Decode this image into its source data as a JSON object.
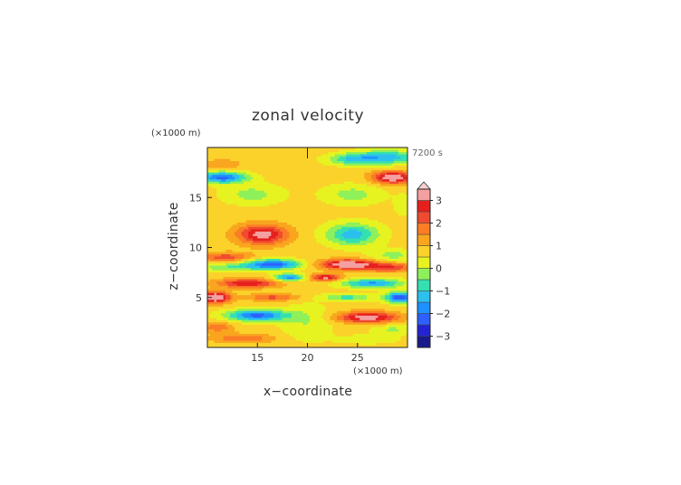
{
  "chart_data": {
    "type": "heatmap",
    "title": "zonal velocity",
    "xlabel": "x−coordinate",
    "ylabel": "z−coordinate",
    "x_unit": "(×1000 m)",
    "y_unit": "(×1000 m)",
    "time_label": "7200 s",
    "xlim": [
      10,
      30
    ],
    "ylim": [
      0,
      20
    ],
    "x_ticks": [
      "15",
      "20",
      "25"
    ],
    "x_tick_values": [
      15,
      20,
      25
    ],
    "y_ticks": [
      "5",
      "10",
      "15"
    ],
    "y_tick_values": [
      5,
      10,
      15
    ],
    "colorbar": {
      "range": [
        -3.5,
        3.5
      ],
      "ticks": [
        "3",
        "2",
        "1",
        "0",
        "−1",
        "−2",
        "−3"
      ],
      "tick_values": [
        3,
        2,
        1,
        0,
        -1,
        -2,
        -3
      ],
      "extend": "max",
      "levels": [
        {
          "min": -3.5,
          "max": -3.0,
          "color": "#1a1a8c"
        },
        {
          "min": -3.0,
          "max": -2.5,
          "color": "#2323d4"
        },
        {
          "min": -2.5,
          "max": -2.0,
          "color": "#2e5fff"
        },
        {
          "min": -2.0,
          "max": -1.5,
          "color": "#1f90ff"
        },
        {
          "min": -1.5,
          "max": -1.0,
          "color": "#2bc0ee"
        },
        {
          "min": -1.0,
          "max": -0.5,
          "color": "#35e0b0"
        },
        {
          "min": -0.5,
          "max": 0.0,
          "color": "#8ef05a"
        },
        {
          "min": 0.0,
          "max": 0.5,
          "color": "#e7f320"
        },
        {
          "min": 0.5,
          "max": 1.0,
          "color": "#fad22a"
        },
        {
          "min": 1.0,
          "max": 1.5,
          "color": "#f9a51e"
        },
        {
          "min": 1.5,
          "max": 2.0,
          "color": "#fb7d26"
        },
        {
          "min": 2.0,
          "max": 2.5,
          "color": "#f04a30"
        },
        {
          "min": 2.5,
          "max": 3.0,
          "color": "#e6201c"
        },
        {
          "min": 3.0,
          "max": 3.5,
          "color": "#f4a0a0"
        }
      ]
    },
    "background_value": 0.7,
    "features": [
      {
        "x": 11.5,
        "z": 18.3,
        "sx": 1.8,
        "sz": 0.5,
        "v": 0.8
      },
      {
        "x": 11.5,
        "z": 17.0,
        "sx": 2.4,
        "sz": 0.55,
        "v": -2.9
      },
      {
        "x": 28.0,
        "z": 19.0,
        "sx": 3.5,
        "sz": 0.7,
        "v": -1.9
      },
      {
        "x": 24.5,
        "z": 18.8,
        "sx": 2.5,
        "sz": 0.55,
        "v": -1.4
      },
      {
        "x": 28.5,
        "z": 17.0,
        "sx": 2.0,
        "sz": 0.6,
        "v": 3.0
      },
      {
        "x": 14.5,
        "z": 15.3,
        "sx": 3.0,
        "sz": 1.0,
        "v": -0.9
      },
      {
        "x": 24.5,
        "z": 15.3,
        "sx": 3.0,
        "sz": 1.0,
        "v": -0.9
      },
      {
        "x": 29.6,
        "z": 14.2,
        "sx": 0.9,
        "sz": 1.0,
        "v": -0.6
      },
      {
        "x": 15.5,
        "z": 11.3,
        "sx": 2.5,
        "sz": 1.0,
        "v": 2.6
      },
      {
        "x": 24.5,
        "z": 11.3,
        "sx": 2.6,
        "sz": 1.1,
        "v": -2.0
      },
      {
        "x": 11.8,
        "z": 9.0,
        "sx": 2.5,
        "sz": 0.5,
        "v": 1.6
      },
      {
        "x": 28.5,
        "z": 9.2,
        "sx": 2.2,
        "sz": 0.6,
        "v": -0.9
      },
      {
        "x": 12.0,
        "z": 8.0,
        "sx": 2.8,
        "sz": 0.45,
        "v": -1.1
      },
      {
        "x": 16.5,
        "z": 8.3,
        "sx": 2.8,
        "sz": 0.5,
        "v": -3.0
      },
      {
        "x": 24.0,
        "z": 8.3,
        "sx": 2.8,
        "sz": 0.5,
        "v": 3.0
      },
      {
        "x": 28.2,
        "z": 8.0,
        "sx": 2.5,
        "sz": 0.45,
        "v": 1.8
      },
      {
        "x": 14.0,
        "z": 6.4,
        "sx": 3.0,
        "sz": 0.45,
        "v": 2.3
      },
      {
        "x": 26.5,
        "z": 6.4,
        "sx": 3.0,
        "sz": 0.45,
        "v": -2.3
      },
      {
        "x": 18.2,
        "z": 7.0,
        "sx": 1.5,
        "sz": 0.35,
        "v": -2.5
      },
      {
        "x": 21.8,
        "z": 7.0,
        "sx": 1.5,
        "sz": 0.35,
        "v": 2.5
      },
      {
        "x": 10.8,
        "z": 5.0,
        "sx": 1.4,
        "sz": 0.55,
        "v": 3.4
      },
      {
        "x": 29.2,
        "z": 5.0,
        "sx": 1.4,
        "sz": 0.55,
        "v": -3.2
      },
      {
        "x": 16.5,
        "z": 5.0,
        "sx": 2.5,
        "sz": 0.35,
        "v": 1.5
      },
      {
        "x": 24.0,
        "z": 5.0,
        "sx": 2.5,
        "sz": 0.35,
        "v": -1.4
      },
      {
        "x": 15.0,
        "z": 3.2,
        "sx": 3.0,
        "sz": 0.55,
        "v": -2.9
      },
      {
        "x": 26.0,
        "z": 3.0,
        "sx": 3.0,
        "sz": 0.55,
        "v": 2.7
      },
      {
        "x": 11.0,
        "z": 2.0,
        "sx": 1.5,
        "sz": 0.5,
        "v": 1.2
      },
      {
        "x": 28.5,
        "z": 1.8,
        "sx": 2.0,
        "sz": 0.5,
        "v": -0.8
      },
      {
        "x": 13.5,
        "z": 0.9,
        "sx": 3.0,
        "sz": 0.45,
        "v": 1.3
      },
      {
        "x": 26.0,
        "z": 0.8,
        "sx": 3.0,
        "sz": 0.45,
        "v": -0.6
      },
      {
        "x": 20.0,
        "z": 2.5,
        "sx": 2.5,
        "sz": 1.8,
        "v": -0.7
      }
    ]
  }
}
